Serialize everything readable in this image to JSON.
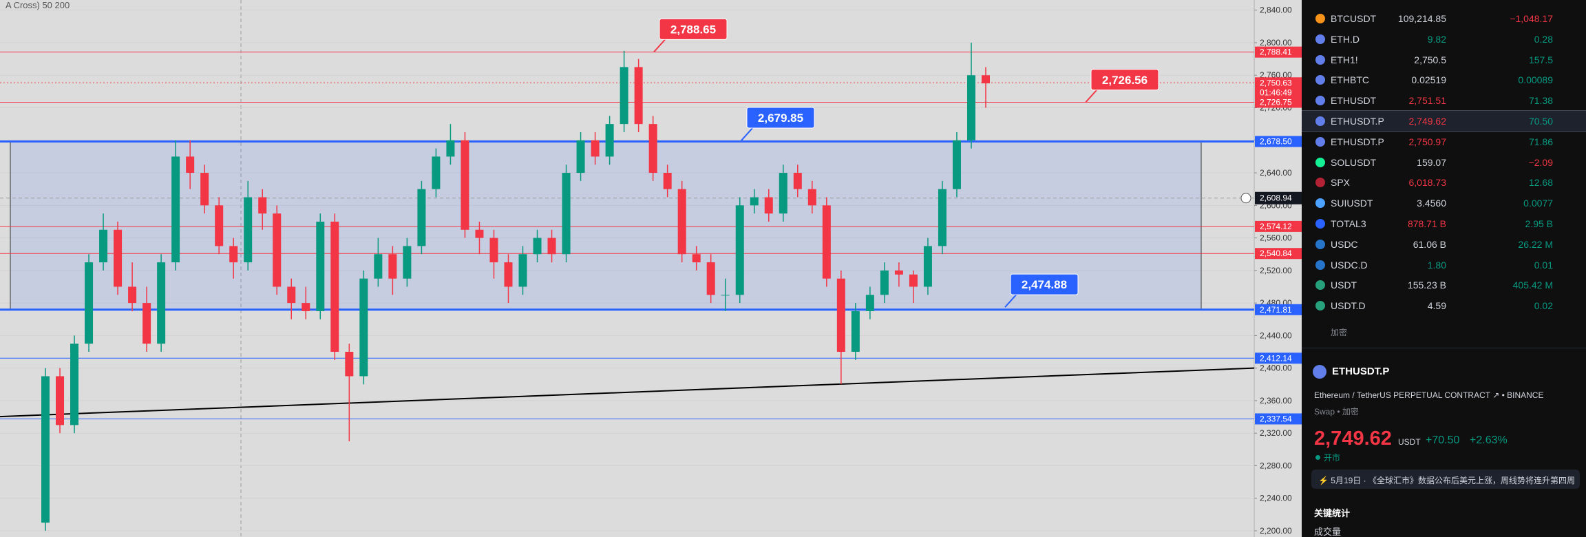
{
  "chart_data": {
    "type": "candlestick",
    "indicator_label": "A Cross) 50 200",
    "ylim": [
      2200,
      2840
    ],
    "yticks": [
      {
        "value": 2200,
        "label": "2,200.00"
      },
      {
        "value": 2240,
        "label": "2,240.00"
      },
      {
        "value": 2280,
        "label": "2,280.00"
      },
      {
        "value": 2320,
        "label": "2,320.00"
      },
      {
        "value": 2360,
        "label": "2,360.00"
      },
      {
        "value": 2400,
        "label": "2,400.00"
      },
      {
        "value": 2440,
        "label": "2,440.00"
      },
      {
        "value": 2480,
        "label": "2,480.00"
      },
      {
        "value": 2520,
        "label": "2,520.00"
      },
      {
        "value": 2560,
        "label": "2,560.00"
      },
      {
        "value": 2600,
        "label": "2,600.00"
      },
      {
        "value": 2640,
        "label": "2,640.00"
      },
      {
        "value": 2680,
        "label": "2,680.00"
      },
      {
        "value": 2720,
        "label": "2,720.00"
      },
      {
        "value": 2760,
        "label": "2,760.00"
      },
      {
        "value": 2800,
        "label": "2,800.00"
      },
      {
        "value": 2840,
        "label": "2,840.00"
      }
    ],
    "grid": true,
    "up_color": "#089981",
    "down_color": "#f23645",
    "candles": [
      [
        2210,
        2400,
        2200,
        2390
      ],
      [
        2390,
        2400,
        2320,
        2330
      ],
      [
        2330,
        2440,
        2320,
        2430
      ],
      [
        2430,
        2540,
        2420,
        2530
      ],
      [
        2530,
        2590,
        2520,
        2570
      ],
      [
        2570,
        2580,
        2490,
        2500
      ],
      [
        2500,
        2530,
        2470,
        2480
      ],
      [
        2480,
        2500,
        2420,
        2430
      ],
      [
        2430,
        2540,
        2420,
        2530
      ],
      [
        2530,
        2680,
        2520,
        2660
      ],
      [
        2660,
        2680,
        2620,
        2640
      ],
      [
        2640,
        2650,
        2590,
        2600
      ],
      [
        2600,
        2610,
        2540,
        2550
      ],
      [
        2550,
        2560,
        2510,
        2530
      ],
      [
        2530,
        2630,
        2520,
        2610
      ],
      [
        2610,
        2620,
        2570,
        2590
      ],
      [
        2590,
        2600,
        2490,
        2500
      ],
      [
        2500,
        2510,
        2460,
        2480
      ],
      [
        2480,
        2500,
        2460,
        2470
      ],
      [
        2470,
        2590,
        2460,
        2580
      ],
      [
        2580,
        2590,
        2410,
        2420
      ],
      [
        2420,
        2430,
        2310,
        2390
      ],
      [
        2390,
        2520,
        2380,
        2510
      ],
      [
        2510,
        2560,
        2500,
        2540
      ],
      [
        2540,
        2550,
        2490,
        2510
      ],
      [
        2510,
        2560,
        2500,
        2550
      ],
      [
        2550,
        2630,
        2540,
        2620
      ],
      [
        2620,
        2670,
        2610,
        2660
      ],
      [
        2660,
        2700,
        2650,
        2680
      ],
      [
        2680,
        2690,
        2560,
        2570
      ],
      [
        2570,
        2580,
        2540,
        2560
      ],
      [
        2560,
        2570,
        2510,
        2530
      ],
      [
        2530,
        2540,
        2480,
        2500
      ],
      [
        2500,
        2550,
        2490,
        2540
      ],
      [
        2540,
        2570,
        2530,
        2560
      ],
      [
        2560,
        2570,
        2530,
        2540
      ],
      [
        2540,
        2650,
        2530,
        2640
      ],
      [
        2640,
        2690,
        2630,
        2680
      ],
      [
        2680,
        2690,
        2650,
        2660
      ],
      [
        2660,
        2710,
        2650,
        2700
      ],
      [
        2700,
        2790,
        2690,
        2770
      ],
      [
        2770,
        2780,
        2690,
        2700
      ],
      [
        2700,
        2710,
        2630,
        2640
      ],
      [
        2640,
        2650,
        2610,
        2620
      ],
      [
        2620,
        2630,
        2530,
        2540
      ],
      [
        2540,
        2550,
        2520,
        2530
      ],
      [
        2530,
        2540,
        2480,
        2490
      ],
      [
        2490,
        2510,
        2470,
        2490
      ],
      [
        2490,
        2610,
        2480,
        2600
      ],
      [
        2600,
        2620,
        2590,
        2610
      ],
      [
        2610,
        2620,
        2580,
        2590
      ],
      [
        2590,
        2650,
        2580,
        2640
      ],
      [
        2640,
        2650,
        2610,
        2620
      ],
      [
        2620,
        2630,
        2590,
        2600
      ],
      [
        2600,
        2610,
        2500,
        2510
      ],
      [
        2510,
        2520,
        2380,
        2420
      ],
      [
        2420,
        2480,
        2410,
        2470
      ],
      [
        2470,
        2500,
        2460,
        2490
      ],
      [
        2490,
        2530,
        2480,
        2520
      ],
      [
        2520,
        2530,
        2500,
        2515
      ],
      [
        2515,
        2520,
        2480,
        2500
      ],
      [
        2500,
        2560,
        2490,
        2550
      ],
      [
        2550,
        2630,
        2540,
        2620
      ],
      [
        2620,
        2690,
        2610,
        2680
      ],
      [
        2680,
        2800,
        2670,
        2760
      ],
      [
        2760,
        2770,
        2720,
        2750
      ]
    ],
    "levels": [
      {
        "value": 2788.41,
        "label": "2,788.41",
        "color": "#f23645",
        "width": 1
      },
      {
        "value": 2726.75,
        "label": "2,726.75",
        "color": "#f23645",
        "width": 1
      },
      {
        "value": 2678.5,
        "label": "2,678.50",
        "color": "#2962ff",
        "width": 3
      },
      {
        "value": 2574.12,
        "label": "2,574.12",
        "color": "#f23645",
        "width": 1
      },
      {
        "value": 2540.84,
        "label": "2,540.84",
        "color": "#f23645",
        "width": 1
      },
      {
        "value": 2471.81,
        "label": "2,471.81",
        "color": "#2962ff",
        "width": 3
      },
      {
        "value": 2412.14,
        "label": "2,412.14",
        "color": "#2962ff",
        "width": 1
      },
      {
        "value": 2337.54,
        "label": "2,337.54",
        "color": "#2962ff",
        "width": 1
      }
    ],
    "current": {
      "value": 2750.63,
      "label": "2,750.63",
      "countdown": "01:46:49",
      "color": "#f23645"
    },
    "crosshair": {
      "value": 2608.94,
      "label": "2,608.94"
    },
    "box": {
      "top": 2678.5,
      "bottom": 2471.81
    },
    "trendline": {
      "start": 2340.4,
      "end": 2400
    },
    "callouts": [
      {
        "value": 2788.65,
        "label": "2,788.65",
        "color": "#f23645"
      },
      {
        "value": 2726.56,
        "label": "2,726.56",
        "color": "#f23645"
      },
      {
        "value": 2679.85,
        "label": "2,679.85",
        "color": "#2962ff"
      },
      {
        "value": 2474.88,
        "label": "2,474.88",
        "color": "#2962ff"
      }
    ]
  },
  "watchlist": {
    "rows": [
      {
        "symbol": "BTCUSDT",
        "last": "109,214.85",
        "change": "−1,048.17",
        "last_color": "#d1d4dc",
        "change_color": "#f23645",
        "icon": "#f7931a"
      },
      {
        "symbol": "ETH.D",
        "last": "9.82",
        "change": "0.28",
        "last_color": "#089981",
        "change_color": "#089981",
        "icon": "#627eea"
      },
      {
        "symbol": "ETH1!",
        "last": "2,750.5",
        "change": "157.5",
        "last_color": "#d1d4dc",
        "change_color": "#089981",
        "icon": "#627eea"
      },
      {
        "symbol": "ETHBTC",
        "last": "0.02519",
        "change": "0.00089",
        "last_color": "#d1d4dc",
        "change_color": "#089981",
        "icon": "#627eea"
      },
      {
        "symbol": "ETHUSDT",
        "last": "2,751.51",
        "change": "71.38",
        "last_color": "#f23645",
        "change_color": "#089981",
        "icon": "#627eea"
      },
      {
        "symbol": "ETHUSDT.P",
        "last": "2,749.62",
        "change": "70.50",
        "last_color": "#f23645",
        "change_color": "#089981",
        "icon": "#627eea",
        "selected": true
      },
      {
        "symbol": "ETHUSDT.P",
        "last": "2,750.97",
        "change": "71.86",
        "last_color": "#f23645",
        "change_color": "#089981",
        "icon": "#627eea"
      },
      {
        "symbol": "SOLUSDT",
        "last": "159.07",
        "change": "−2.09",
        "last_color": "#d1d4dc",
        "change_color": "#f23645",
        "icon": "#14f195"
      },
      {
        "symbol": "SPX",
        "last": "6,018.73",
        "change": "12.68",
        "last_color": "#f23645",
        "change_color": "#089981",
        "icon": "#b22234"
      },
      {
        "symbol": "SUIUSDT",
        "last": "3.4560",
        "change": "0.0077",
        "last_color": "#d1d4dc",
        "change_color": "#089981",
        "icon": "#4da2ff"
      },
      {
        "symbol": "TOTAL3",
        "last": "878.71 B",
        "change": "2.95 B",
        "last_color": "#f23645",
        "change_color": "#089981",
        "icon": "#2962ff"
      },
      {
        "symbol": "USDC",
        "last": "61.06 B",
        "change": "26.22 M",
        "last_color": "#d1d4dc",
        "change_color": "#089981",
        "icon": "#2775ca"
      },
      {
        "symbol": "USDC.D",
        "last": "1.80",
        "change": "0.01",
        "last_color": "#089981",
        "change_color": "#089981",
        "icon": "#2775ca"
      },
      {
        "symbol": "USDT",
        "last": "155.23 B",
        "change": "405.42 M",
        "last_color": "#d1d4dc",
        "change_color": "#089981",
        "icon": "#26a17b"
      },
      {
        "symbol": "USDT.D",
        "last": "4.59",
        "change": "0.02",
        "last_color": "#d1d4dc",
        "change_color": "#089981",
        "icon": "#26a17b"
      }
    ],
    "section": "加密"
  },
  "detail": {
    "symbol": "ETHUSDT.P",
    "description": "Ethereum / TetherUS PERPETUAL CONTRACT",
    "exchange": "BINANCE",
    "category": "Swap • 加密",
    "price": "2,749.62",
    "currency": "USDT",
    "change": "+70.50",
    "change_pct": "+2.63%",
    "status": "开市",
    "news": "5月19日 · 《全球汇市》数据公布后美元上涨，周线势将连升第四周",
    "stats_title": "关键统计",
    "volume_label": "成交量"
  }
}
